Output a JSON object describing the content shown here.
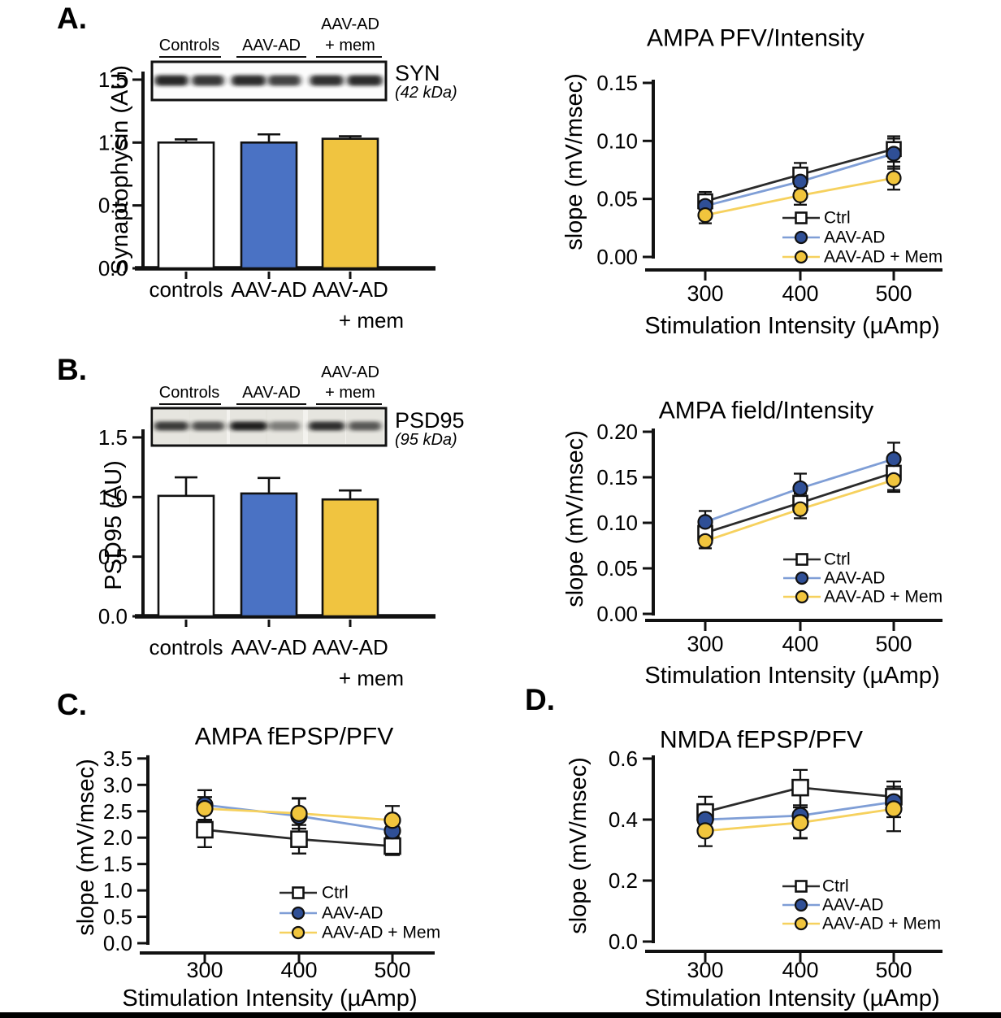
{
  "figure": {
    "panels": {
      "a": {
        "letter": "A."
      },
      "b": {
        "letter": "B."
      },
      "c": {
        "letter": "C."
      },
      "d": {
        "letter": "D."
      }
    }
  },
  "colors": {
    "bar_blue": "#4a72c4",
    "bar_yellow": "#f0c440",
    "line_blue": "#7f9ed6",
    "marker_blue": "#2f4f96",
    "line_yellow": "#f6d15e",
    "marker_yellow": "#f1c53d",
    "ctrl_black": "#2b2b2b"
  },
  "chart_data": [
    {
      "id": "syn",
      "type": "bar",
      "title": "",
      "ylabel": "Synaptophysin (AU)",
      "yticks": [
        0.0,
        0.5,
        1.0,
        1.5
      ],
      "ylim": [
        0,
        1.55
      ],
      "categories": [
        "controls",
        "AAV-AD",
        "AAV-AD\n+ mem"
      ],
      "values": [
        1.0,
        1.0,
        1.03
      ],
      "errors": [
        0.025,
        0.065,
        0.02
      ],
      "bar_colors": [
        "#ffffff",
        "#4a72c4",
        "#f0c440"
      ],
      "blot": {
        "lane_groups": [
          "Controls",
          "AAV-AD",
          "AAV-AD\n+ mem"
        ],
        "band_label": "SYN",
        "band_kda": "(42 kDa)"
      }
    },
    {
      "id": "psd",
      "type": "bar",
      "title": "",
      "ylabel": "PSD95 (AU)",
      "yticks": [
        0.0,
        0.5,
        1.0,
        1.5
      ],
      "ylim": [
        0,
        1.55
      ],
      "categories": [
        "controls",
        "AAV-AD",
        "AAV-AD\n+ mem"
      ],
      "values": [
        1.01,
        1.03,
        0.98
      ],
      "errors": [
        0.155,
        0.13,
        0.075
      ],
      "bar_colors": [
        "#ffffff",
        "#4a72c4",
        "#f0c440"
      ],
      "blot": {
        "lane_groups": [
          "Controls",
          "AAV-AD",
          "AAV-AD\n+ mem"
        ],
        "band_label": "PSD95",
        "band_kda": "(95 kDa)"
      }
    },
    {
      "id": "ampa_pfv",
      "type": "line",
      "title": "AMPA PFV/Intensity",
      "xlabel": "Stimulation Intensity (µAmp)",
      "ylabel": "slope (mV/msec)",
      "x": [
        300,
        400,
        500
      ],
      "yticks": [
        0.0,
        0.05,
        0.1,
        0.15
      ],
      "ylim": [
        0,
        0.15
      ],
      "legend_position": "inside-bottom-right",
      "series": [
        {
          "name": "Ctrl",
          "marker": "square-open",
          "line_color": "#2b2b2b",
          "marker_fill": "#ffffff",
          "values": [
            0.048,
            0.071,
            0.093
          ],
          "errors": [
            0.008,
            0.01,
            0.011
          ]
        },
        {
          "name": "AAV-AD",
          "marker": "circle",
          "line_color": "#7f9ed6",
          "marker_fill": "#2f4f96",
          "values": [
            0.044,
            0.065,
            0.089
          ],
          "errors": [
            0.006,
            0.008,
            0.013
          ]
        },
        {
          "name": "AAV-AD + Mem",
          "marker": "circle",
          "line_color": "#f6d15e",
          "marker_fill": "#f1c53d",
          "values": [
            0.036,
            0.053,
            0.068
          ],
          "errors": [
            0.007,
            0.008,
            0.01
          ]
        }
      ]
    },
    {
      "id": "ampa_field",
      "type": "line",
      "title": "AMPA field/Intensity",
      "xlabel": "Stimulation Intensity (µAmp)",
      "ylabel": "slope (mV/msec)",
      "x": [
        300,
        400,
        500
      ],
      "yticks": [
        0.0,
        0.05,
        0.1,
        0.15,
        0.2
      ],
      "ylim": [
        0,
        0.2
      ],
      "legend_position": "inside-bottom-right",
      "series": [
        {
          "name": "Ctrl",
          "marker": "square-open",
          "line_color": "#2b2b2b",
          "marker_fill": "#ffffff",
          "values": [
            0.089,
            0.122,
            0.155
          ],
          "errors": [
            0.01,
            0.01,
            0.019
          ]
        },
        {
          "name": "AAV-AD",
          "marker": "circle",
          "line_color": "#7f9ed6",
          "marker_fill": "#2f4f96",
          "values": [
            0.101,
            0.138,
            0.17
          ],
          "errors": [
            0.012,
            0.016,
            0.018
          ]
        },
        {
          "name": "AAV-AD + Mem",
          "marker": "circle",
          "line_color": "#f6d15e",
          "marker_fill": "#f1c53d",
          "values": [
            0.08,
            0.115,
            0.147
          ],
          "errors": [
            0.008,
            0.01,
            0.013
          ]
        }
      ]
    },
    {
      "id": "ampa_fepsp",
      "type": "line",
      "title": "AMPA fEPSP/PFV",
      "xlabel": "Stimulation Intensity (µAmp)",
      "ylabel": "slope (mV/msec)",
      "x": [
        300,
        400,
        500
      ],
      "yticks": [
        0.0,
        0.5,
        1.0,
        1.5,
        2.0,
        2.5,
        3.0,
        3.5
      ],
      "ylim": [
        0,
        3.5
      ],
      "legend_position": "inside-bottom-right",
      "series": [
        {
          "name": "Ctrl",
          "marker": "square-open",
          "line_color": "#2b2b2b",
          "marker_fill": "#ffffff",
          "values": [
            2.15,
            1.97,
            1.84
          ],
          "errors": [
            0.33,
            0.27,
            0.17
          ]
        },
        {
          "name": "AAV-AD",
          "marker": "circle",
          "line_color": "#7f9ed6",
          "marker_fill": "#2f4f96",
          "values": [
            2.62,
            2.41,
            2.13
          ],
          "errors": [
            0.28,
            0.33,
            0.24
          ]
        },
        {
          "name": "AAV-AD + Mem",
          "marker": "circle",
          "line_color": "#f6d15e",
          "marker_fill": "#f1c53d",
          "values": [
            2.55,
            2.46,
            2.33
          ],
          "errors": [
            0.22,
            0.29,
            0.27
          ]
        }
      ]
    },
    {
      "id": "nmda_fepsp",
      "type": "line",
      "title": "NMDA fEPSP/PFV",
      "xlabel": "Stimulation Intensity (µAmp)",
      "ylabel": "slope (mV/msec)",
      "x": [
        300,
        400,
        500
      ],
      "yticks": [
        0.0,
        0.2,
        0.4,
        0.6
      ],
      "ylim": [
        0,
        0.6
      ],
      "legend_position": "inside-bottom-right",
      "series": [
        {
          "name": "Ctrl",
          "marker": "square-open",
          "line_color": "#2b2b2b",
          "marker_fill": "#ffffff",
          "values": [
            0.425,
            0.505,
            0.475
          ],
          "errors": [
            0.05,
            0.058,
            0.05
          ]
        },
        {
          "name": "AAV-AD",
          "marker": "circle",
          "line_color": "#7f9ed6",
          "marker_fill": "#2f4f96",
          "values": [
            0.4,
            0.413,
            0.458
          ],
          "errors": [
            0.042,
            0.075,
            0.05
          ]
        },
        {
          "name": "AAV-AD + Mem",
          "marker": "circle",
          "line_color": "#f6d15e",
          "marker_fill": "#f1c53d",
          "values": [
            0.363,
            0.39,
            0.435
          ],
          "errors": [
            0.05,
            0.05,
            0.073
          ]
        }
      ]
    }
  ]
}
